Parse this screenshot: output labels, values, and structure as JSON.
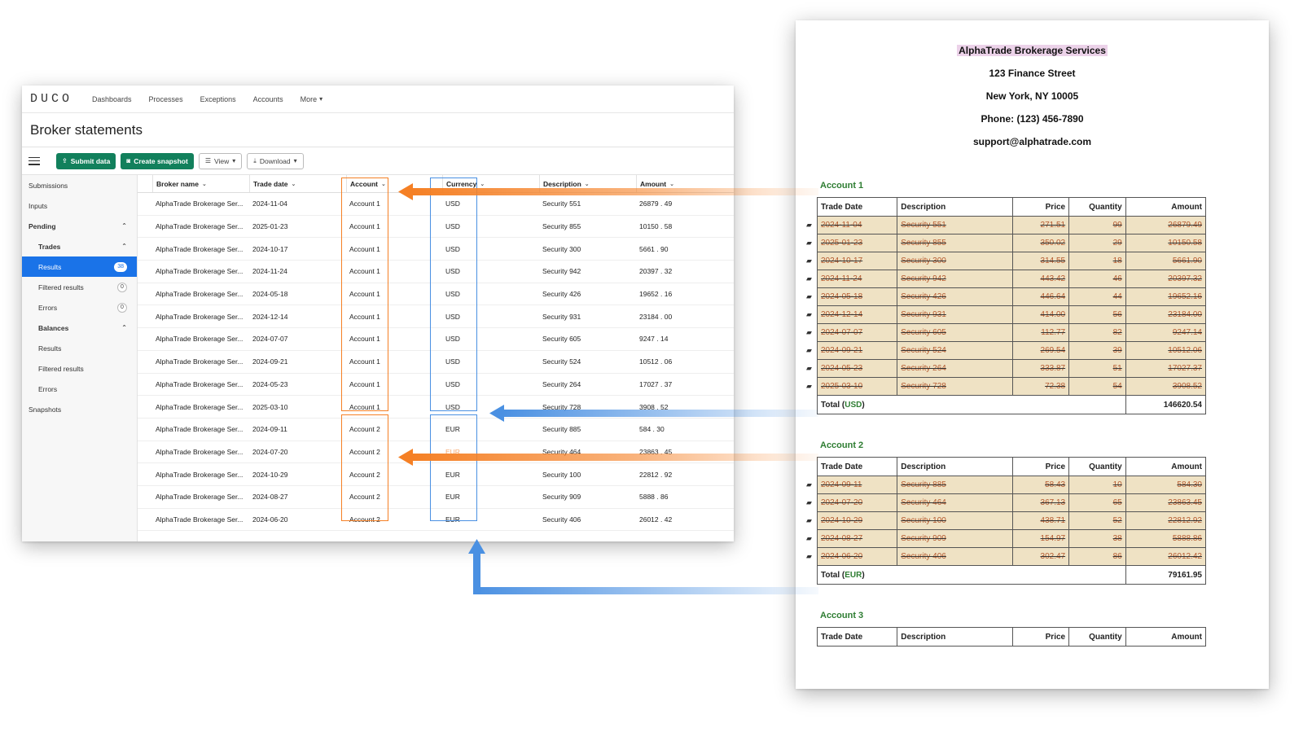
{
  "nav": {
    "logo": "DUCO",
    "items": [
      "Dashboards",
      "Processes",
      "Exceptions",
      "Accounts",
      "More"
    ]
  },
  "page_title": "Broker statements",
  "toolbar": {
    "submit_label": "Submit data",
    "snapshot_label": "Create snapshot",
    "view_label": "View",
    "download_label": "Download"
  },
  "sidebar": {
    "submissions": "Submissions",
    "inputs": "Inputs",
    "pending": "Pending",
    "trades": "Trades",
    "results": "Results",
    "results_count": "38",
    "filtered_results": "Filtered results",
    "filtered_count": "0",
    "errors": "Errors",
    "errors_count": "0",
    "balances": "Balances",
    "bal_results": "Results",
    "bal_filtered": "Filtered results",
    "bal_errors": "Errors",
    "snapshots": "Snapshots"
  },
  "grid": {
    "columns": [
      "Broker name",
      "Trade date",
      "Account",
      "Currency",
      "Description",
      "Amount"
    ],
    "rows": [
      {
        "broker": "AlphaTrade Brokerage Ser...",
        "date": "2024-11-04",
        "account": "Account 1",
        "currency": "USD",
        "desc": "Security 551",
        "amount": "26879 . 49"
      },
      {
        "broker": "AlphaTrade Brokerage Ser...",
        "date": "2025-01-23",
        "account": "Account 1",
        "currency": "USD",
        "desc": "Security 855",
        "amount": "10150 . 58"
      },
      {
        "broker": "AlphaTrade Brokerage Ser...",
        "date": "2024-10-17",
        "account": "Account 1",
        "currency": "USD",
        "desc": "Security 300",
        "amount": "5661 . 90"
      },
      {
        "broker": "AlphaTrade Brokerage Ser...",
        "date": "2024-11-24",
        "account": "Account 1",
        "currency": "USD",
        "desc": "Security 942",
        "amount": "20397 . 32"
      },
      {
        "broker": "AlphaTrade Brokerage Ser...",
        "date": "2024-05-18",
        "account": "Account 1",
        "currency": "USD",
        "desc": "Security 426",
        "amount": "19652 . 16"
      },
      {
        "broker": "AlphaTrade Brokerage Ser...",
        "date": "2024-12-14",
        "account": "Account 1",
        "currency": "USD",
        "desc": "Security 931",
        "amount": "23184 . 00"
      },
      {
        "broker": "AlphaTrade Brokerage Ser...",
        "date": "2024-07-07",
        "account": "Account 1",
        "currency": "USD",
        "desc": "Security 605",
        "amount": "9247 . 14"
      },
      {
        "broker": "AlphaTrade Brokerage Ser...",
        "date": "2024-09-21",
        "account": "Account 1",
        "currency": "USD",
        "desc": "Security 524",
        "amount": "10512 . 06"
      },
      {
        "broker": "AlphaTrade Brokerage Ser...",
        "date": "2024-05-23",
        "account": "Account 1",
        "currency": "USD",
        "desc": "Security 264",
        "amount": "17027 . 37"
      },
      {
        "broker": "AlphaTrade Brokerage Ser...",
        "date": "2025-03-10",
        "account": "Account 1",
        "currency": "USD",
        "desc": "Security 728",
        "amount": "3908 . 52"
      },
      {
        "broker": "AlphaTrade Brokerage Ser...",
        "date": "2024-09-11",
        "account": "Account 2",
        "currency": "EUR",
        "desc": "Security 885",
        "amount": "584 . 30"
      },
      {
        "broker": "AlphaTrade Brokerage Ser...",
        "date": "2024-07-20",
        "account": "Account 2",
        "currency": "EUR",
        "desc": "Security 464",
        "amount": "23863 . 45"
      },
      {
        "broker": "AlphaTrade Brokerage Ser...",
        "date": "2024-10-29",
        "account": "Account 2",
        "currency": "EUR",
        "desc": "Security 100",
        "amount": "22812 . 92"
      },
      {
        "broker": "AlphaTrade Brokerage Ser...",
        "date": "2024-08-27",
        "account": "Account 2",
        "currency": "EUR",
        "desc": "Security 909",
        "amount": "5888 . 86"
      },
      {
        "broker": "AlphaTrade Brokerage Ser...",
        "date": "2024-06-20",
        "account": "Account 2",
        "currency": "EUR",
        "desc": "Security 406",
        "amount": "26012 . 42"
      }
    ]
  },
  "statement": {
    "firm": "AlphaTrade Brokerage Services",
    "address1": "123 Finance Street",
    "address2": "New York, NY 10005",
    "phone": "Phone: (123) 456-7890",
    "email": "support@alphatrade.com",
    "headers": [
      "Trade Date",
      "Description",
      "Price",
      "Quantity",
      "Amount"
    ],
    "total_label": "Total",
    "accounts": [
      {
        "label": "Account 1",
        "currency": "USD",
        "total": "146620.54",
        "rows": [
          [
            "2024-11-04",
            "Security 551",
            "271.51",
            "99",
            "26879.49"
          ],
          [
            "2025-01-23",
            "Security 855",
            "350.02",
            "29",
            "10150.58"
          ],
          [
            "2024-10-17",
            "Security 300",
            "314.55",
            "18",
            "5661.90"
          ],
          [
            "2024-11-24",
            "Security 942",
            "443.42",
            "46",
            "20397.32"
          ],
          [
            "2024-05-18",
            "Security 426",
            "446.64",
            "44",
            "19652.16"
          ],
          [
            "2024-12-14",
            "Security 931",
            "414.00",
            "56",
            "23184.00"
          ],
          [
            "2024-07-07",
            "Security 605",
            "112.77",
            "82",
            "9247.14"
          ],
          [
            "2024-09-21",
            "Security 524",
            "269.54",
            "39",
            "10512.06"
          ],
          [
            "2024-05-23",
            "Security 264",
            "333.87",
            "51",
            "17027.37"
          ],
          [
            "2025-03-10",
            "Security 728",
            "72.38",
            "54",
            "3908.52"
          ]
        ]
      },
      {
        "label": "Account 2",
        "currency": "EUR",
        "total": "79161.95",
        "rows": [
          [
            "2024-09-11",
            "Security 885",
            "58.43",
            "10",
            "584.30"
          ],
          [
            "2024-07-20",
            "Security 464",
            "367.13",
            "65",
            "23863.45"
          ],
          [
            "2024-10-29",
            "Security 100",
            "438.71",
            "52",
            "22812.92"
          ],
          [
            "2024-08-27",
            "Security 909",
            "154.97",
            "38",
            "5888.86"
          ],
          [
            "2024-06-20",
            "Security 406",
            "302.47",
            "86",
            "26012.42"
          ]
        ]
      },
      {
        "label": "Account 3",
        "rows": []
      }
    ]
  },
  "colors": {
    "accent_green": "#12805c",
    "active_blue": "#1a73e8",
    "arrow_orange": "#f58025",
    "arrow_blue": "#4a90e2"
  }
}
